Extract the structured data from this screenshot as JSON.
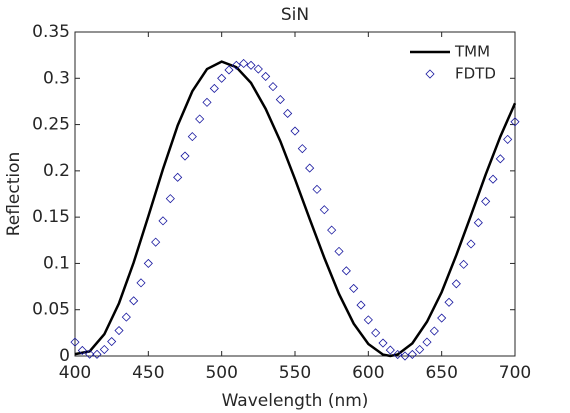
{
  "chart_data": {
    "type": "line",
    "title": "SiN",
    "xlabel": "Wavelength (nm)",
    "ylabel": "Reflection",
    "xlim": [
      400,
      700
    ],
    "xticks": [
      400,
      450,
      500,
      550,
      600,
      650,
      700
    ],
    "ylim": [
      0,
      0.35
    ],
    "yticks": [
      0,
      0.05,
      0.1,
      0.15,
      0.2,
      0.25,
      0.3,
      0.35
    ],
    "legend": "top-right",
    "series": [
      {
        "name": "TMM",
        "color": "#000000",
        "style": "line",
        "x": [
          400,
          410,
          420,
          430,
          440,
          450,
          460,
          470,
          480,
          490,
          500,
          510,
          520,
          530,
          540,
          550,
          560,
          570,
          580,
          590,
          600,
          610,
          615,
          620,
          630,
          640,
          650,
          660,
          670,
          680,
          690,
          700
        ],
        "values": [
          0.002,
          0.005,
          0.0235,
          0.057,
          0.101,
          0.151,
          0.202,
          0.249,
          0.286,
          0.31,
          0.318,
          0.312,
          0.295,
          0.267,
          0.232,
          0.191,
          0.148,
          0.106,
          0.067,
          0.035,
          0.013,
          0.0015,
          0,
          0.0016,
          0.0137,
          0.037,
          0.069,
          0.109,
          0.152,
          0.196,
          0.237,
          0.273
        ]
      },
      {
        "name": "FDTD",
        "color": "#1a1aa0",
        "style": "markers",
        "x": [
          400,
          405,
          410,
          415,
          420,
          425,
          430,
          435,
          440,
          445,
          450,
          455,
          460,
          465,
          470,
          475,
          480,
          485,
          490,
          495,
          500,
          505,
          510,
          515,
          520,
          525,
          530,
          535,
          540,
          545,
          550,
          555,
          560,
          565,
          570,
          575,
          580,
          585,
          590,
          595,
          600,
          605,
          610,
          615,
          620,
          625,
          630,
          635,
          640,
          645,
          650,
          655,
          660,
          665,
          670,
          675,
          680,
          685,
          690,
          695,
          700
        ],
        "values": [
          0.015,
          0.006,
          0.002,
          0.0018,
          0.007,
          0.0156,
          0.0275,
          0.042,
          0.0596,
          0.079,
          0.1,
          0.123,
          0.146,
          0.17,
          0.193,
          0.216,
          0.237,
          0.256,
          0.274,
          0.289,
          0.3,
          0.309,
          0.314,
          0.316,
          0.314,
          0.31,
          0.302,
          0.291,
          0.277,
          0.262,
          0.243,
          0.224,
          0.203,
          0.18,
          0.158,
          0.136,
          0.113,
          0.092,
          0.073,
          0.055,
          0.039,
          0.025,
          0.014,
          0.0064,
          0.0016,
          0,
          0.0017,
          0.007,
          0.015,
          0.027,
          0.041,
          0.058,
          0.078,
          0.099,
          0.121,
          0.144,
          0.167,
          0.191,
          0.213,
          0.234,
          0.253
        ]
      }
    ]
  }
}
